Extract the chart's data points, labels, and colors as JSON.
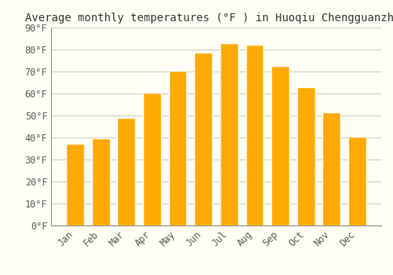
{
  "title": "Average monthly temperatures (°F ) in Huoqiu Chengguanzhen",
  "months": [
    "Jan",
    "Feb",
    "Mar",
    "Apr",
    "May",
    "Jun",
    "Jul",
    "Aug",
    "Sep",
    "Oct",
    "Nov",
    "Dec"
  ],
  "values": [
    37,
    39.5,
    49,
    60.5,
    70.5,
    78.5,
    83,
    82,
    72.5,
    63,
    51.5,
    40.5
  ],
  "bar_color": "#FFAA00",
  "bar_edge_color": "#FFFFFF",
  "background_color": "#FFFFF5",
  "grid_color": "#CCCCBB",
  "ylim": [
    0,
    90
  ],
  "yticks": [
    0,
    10,
    20,
    30,
    40,
    50,
    60,
    70,
    80,
    90
  ],
  "title_fontsize": 10,
  "tick_fontsize": 8.5,
  "title_font": "monospace",
  "tick_font": "monospace",
  "spine_color": "#888888"
}
